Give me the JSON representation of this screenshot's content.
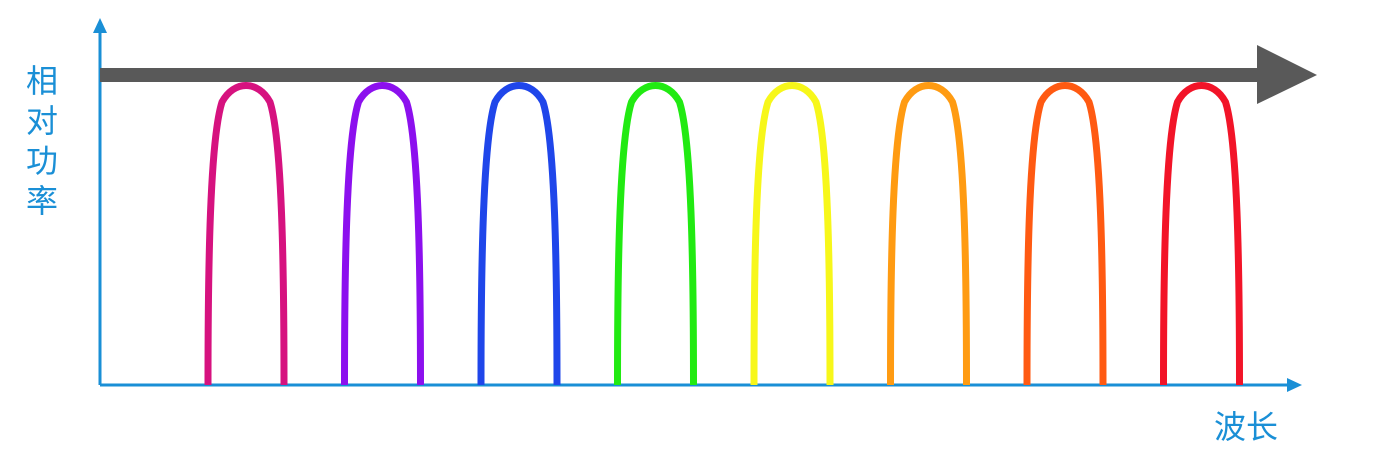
{
  "labels": {
    "y_axis": "相对功率",
    "x_axis": "波长"
  },
  "colors": {
    "axis": "#1a8fd6",
    "band_arrow": "#595959",
    "text": "#1a8fd6"
  },
  "channels": [
    {
      "color": "#d6127f"
    },
    {
      "color": "#8c10ee"
    },
    {
      "color": "#1f46ea"
    },
    {
      "color": "#21ea12"
    },
    {
      "color": "#f7f71a"
    },
    {
      "color": "#ff9b12"
    },
    {
      "color": "#ff5a12"
    },
    {
      "color": "#f21428"
    }
  ]
}
